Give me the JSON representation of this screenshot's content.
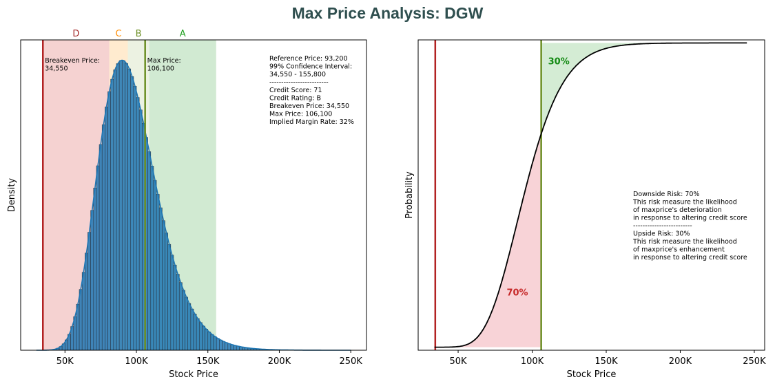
{
  "title": "Max Price Analysis: DGW",
  "colors": {
    "title": "#2f4f4f",
    "bars": "#1f77b4",
    "kde": "#1f77b4",
    "breakeven_line": "#b22222",
    "maxprice_line": "#6b8e23",
    "zone_D": "#d9534f",
    "zone_C": "#ffb347",
    "zone_B": "#b5cc8e",
    "zone_A": "#4caf50",
    "cdf": "#000000",
    "downside_fill": "#f4b6bc",
    "upside_fill": "#b7e0b8",
    "downside_text": "#c62828",
    "upside_text": "#138a13",
    "label_D": "#a52a2a",
    "label_C": "#ff8c00",
    "label_B": "#6b8e23",
    "label_A": "#1e9e1e"
  },
  "chart_data": [
    {
      "type": "bar",
      "xlabel": "Stock Price",
      "ylabel": "Density",
      "xlim": [
        19000,
        261000
      ],
      "ylim": [
        0,
        1.07
      ],
      "xticks": [
        50000,
        100000,
        150000,
        200000,
        250000
      ],
      "xtick_labels": [
        "50K",
        "100K",
        "150K",
        "200K",
        "250K"
      ],
      "yticks_shown": false,
      "histogram": {
        "bin_start": 30000,
        "bin_end": 250000,
        "bin_width": 2000,
        "distribution": {
          "shape": "lognormal",
          "mode": 90000,
          "peak_density": 1.0
        }
      },
      "kde": true,
      "zones": [
        {
          "label": "D",
          "from": 34550,
          "to": 81000
        },
        {
          "label": "C",
          "from": 81000,
          "to": 94000
        },
        {
          "label": "B",
          "from": 94000,
          "to": 109000
        },
        {
          "label": "A",
          "from": 109000,
          "to": 155800
        }
      ],
      "vlines": [
        {
          "name": "Breakeven Price",
          "x": 34550,
          "label": "Breakeven Price:\n34,550"
        },
        {
          "name": "Max Price",
          "x": 106100,
          "label": "Max Price:\n106,100"
        }
      ],
      "info_box": [
        "Reference Price: 93,200",
        "99% Confidence Interval:",
        "34,550 - 155,800",
        "-------------------------",
        "Credit Score: 71",
        "Credit Rating: B",
        "Breakeven Price: 34,550",
        "Max Price: 106,100",
        "Implied Margin Rate: 32%"
      ]
    },
    {
      "type": "line",
      "xlabel": "Stock Price",
      "ylabel": "Probability",
      "xlim": [
        23000,
        257000
      ],
      "ylim": [
        -0.01,
        1.01
      ],
      "xticks": [
        50000,
        100000,
        150000,
        200000,
        250000
      ],
      "xtick_labels": [
        "50K",
        "100K",
        "150K",
        "200K",
        "250K"
      ],
      "yticks_shown": false,
      "series": [
        {
          "cdf_of": "lognormal",
          "mode": 90000,
          "x_start": 34000,
          "x_end": 245000,
          "value_at_max_price": 0.7
        }
      ],
      "vlines": [
        {
          "name": "Breakeven Price",
          "x": 34550
        },
        {
          "name": "Max Price",
          "x": 106100
        }
      ],
      "region_labels": [
        {
          "text": "70%",
          "x": 90000,
          "y": 0.17,
          "kind": "downside"
        },
        {
          "text": "30%",
          "x": 118000,
          "y": 0.93,
          "kind": "upside"
        }
      ],
      "info_box": [
        "Downside Risk: 70%",
        "This risk measure the likelihood",
        "of maxprice's deterioration",
        "in response to altering credit score",
        "-------------------------",
        "Upside Risk: 30%",
        "This risk measure the likelihood",
        "of maxprice's enhancement",
        "in response to altering credit score"
      ]
    }
  ]
}
